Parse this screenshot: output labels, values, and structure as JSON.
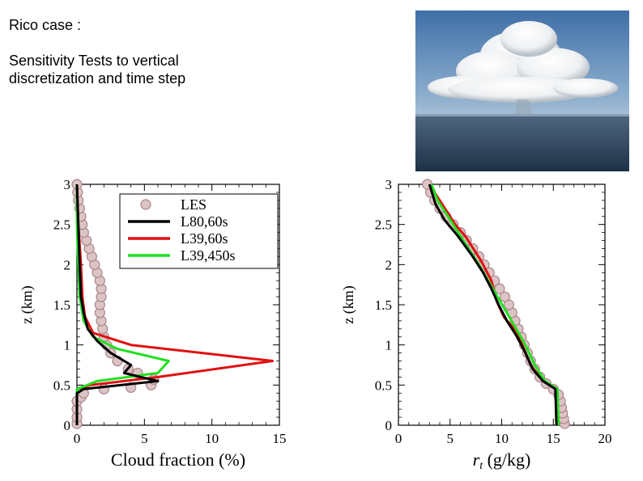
{
  "slide": {
    "heading": "Rico case :",
    "subtitle_line1": "Sensitivity Tests to vertical",
    "subtitle_line2": "discretization and time step",
    "photo_alt": "cumulus cloud over ocean"
  },
  "colors": {
    "LES": "#c9a3a6",
    "L80,60s": "#000000",
    "L39,60s": "#e01010",
    "L39,450s": "#20e020"
  },
  "chart_data": [
    {
      "type": "line",
      "xlabel": "Cloud fraction (%)",
      "ylabel": "z (km)",
      "xlim": [
        0,
        15
      ],
      "ylim": [
        0,
        3
      ],
      "xticks": [
        0,
        5,
        10,
        15
      ],
      "yticks": [
        0,
        0.5,
        1,
        1.5,
        2,
        2.5,
        3
      ],
      "xtick_labels": [
        "0",
        "5",
        "10",
        "15"
      ],
      "ytick_labels": [
        "0",
        "0.5",
        "1",
        "1.5",
        "2",
        "2.5",
        "3"
      ],
      "legend": [
        "LES",
        "L80,60s",
        "L39,60s",
        "L39,450s"
      ],
      "legend_position": "top-right",
      "series": [
        {
          "name": "LES",
          "style": "markers",
          "points": [
            [
              0,
              0.02
            ],
            [
              0,
              0.1
            ],
            [
              0,
              0.2
            ],
            [
              0,
              0.3
            ],
            [
              0.3,
              0.35
            ],
            [
              0.5,
              0.4
            ],
            [
              2,
              0.45
            ],
            [
              4,
              0.47
            ],
            [
              5.5,
              0.5
            ],
            [
              5.7,
              0.57
            ],
            [
              4.5,
              0.65
            ],
            [
              3.8,
              0.7
            ],
            [
              3,
              0.8
            ],
            [
              2.5,
              0.9
            ],
            [
              2.2,
              1.0
            ],
            [
              2,
              1.1
            ],
            [
              1.9,
              1.2
            ],
            [
              1.8,
              1.3
            ],
            [
              1.7,
              1.4
            ],
            [
              1.7,
              1.5
            ],
            [
              1.8,
              1.6
            ],
            [
              1.8,
              1.7
            ],
            [
              1.7,
              1.8
            ],
            [
              1.5,
              1.9
            ],
            [
              1.3,
              2.0
            ],
            [
              1.1,
              2.1
            ],
            [
              0.9,
              2.2
            ],
            [
              0.7,
              2.3
            ],
            [
              0.5,
              2.4
            ],
            [
              0.4,
              2.5
            ],
            [
              0.3,
              2.6
            ],
            [
              0.2,
              2.7
            ],
            [
              0.1,
              2.8
            ],
            [
              0.05,
              2.9
            ],
            [
              0,
              3.0
            ]
          ]
        },
        {
          "name": "L80,60s",
          "style": "line",
          "points": [
            [
              0,
              0
            ],
            [
              0,
              0.4
            ],
            [
              0.5,
              0.45
            ],
            [
              6,
              0.55
            ],
            [
              3.5,
              0.65
            ],
            [
              4,
              0.75
            ],
            [
              2.5,
              0.9
            ],
            [
              1.5,
              1.05
            ],
            [
              0.8,
              1.2
            ],
            [
              0.5,
              1.4
            ],
            [
              0.3,
              1.6
            ],
            [
              0.2,
              2.0
            ],
            [
              0.1,
              2.5
            ],
            [
              0,
              3.0
            ]
          ]
        },
        {
          "name": "L39,60s",
          "style": "line",
          "points": [
            [
              0,
              0
            ],
            [
              0,
              0.45
            ],
            [
              1,
              0.5
            ],
            [
              6,
              0.6
            ],
            [
              14.5,
              0.8
            ],
            [
              4,
              1.0
            ],
            [
              1.2,
              1.15
            ],
            [
              0.6,
              1.35
            ],
            [
              0.4,
              1.6
            ],
            [
              0.3,
              2.0
            ],
            [
              0.1,
              2.5
            ],
            [
              0,
              3.0
            ]
          ]
        },
        {
          "name": "L39,450s",
          "style": "line",
          "points": [
            [
              0,
              0
            ],
            [
              0,
              0.45
            ],
            [
              1.5,
              0.55
            ],
            [
              6,
              0.65
            ],
            [
              6.8,
              0.8
            ],
            [
              3,
              0.95
            ],
            [
              1.2,
              1.1
            ],
            [
              0.5,
              1.3
            ],
            [
              0.2,
              1.6
            ],
            [
              0.1,
              2.0
            ],
            [
              0,
              2.5
            ],
            [
              0,
              3.0
            ]
          ]
        }
      ]
    },
    {
      "type": "line",
      "xlabel": "r_t (g/kg)",
      "xlabel_prefix": "r",
      "xlabel_subscript": "t",
      "xlabel_suffix": " (g/kg)",
      "ylabel": "z (km)",
      "xlim": [
        0,
        20
      ],
      "ylim": [
        0,
        3
      ],
      "xticks": [
        0,
        5,
        10,
        15,
        20
      ],
      "yticks": [
        0,
        0.5,
        1,
        1.5,
        2,
        2.5,
        3
      ],
      "xtick_labels": [
        "0",
        "5",
        "10",
        "15",
        "20"
      ],
      "ytick_labels": [
        "0",
        "0.5",
        "1",
        "1.5",
        "2",
        "2.5",
        "3"
      ],
      "series": [
        {
          "name": "LES",
          "style": "markers",
          "points": [
            [
              16.1,
              0.02
            ],
            [
              16,
              0.08
            ],
            [
              15.9,
              0.15
            ],
            [
              15.8,
              0.22
            ],
            [
              15.7,
              0.3
            ],
            [
              15.5,
              0.38
            ],
            [
              15,
              0.45
            ],
            [
              14.3,
              0.52
            ],
            [
              13.7,
              0.6
            ],
            [
              13.2,
              0.7
            ],
            [
              12.8,
              0.8
            ],
            [
              12.5,
              0.9
            ],
            [
              12.2,
              1.0
            ],
            [
              11.9,
              1.1
            ],
            [
              11.6,
              1.2
            ],
            [
              11.3,
              1.3
            ],
            [
              11,
              1.4
            ],
            [
              10.7,
              1.5
            ],
            [
              10.3,
              1.6
            ],
            [
              9.8,
              1.7
            ],
            [
              9.3,
              1.8
            ],
            [
              8.8,
              1.9
            ],
            [
              8.3,
              2.0
            ],
            [
              7.8,
              2.1
            ],
            [
              7.2,
              2.2
            ],
            [
              6.6,
              2.3
            ],
            [
              6,
              2.4
            ],
            [
              5.3,
              2.5
            ],
            [
              4.6,
              2.6
            ],
            [
              4,
              2.7
            ],
            [
              3.5,
              2.8
            ],
            [
              3.1,
              2.9
            ],
            [
              2.8,
              3.0
            ]
          ]
        },
        {
          "name": "L80,60s",
          "style": "line",
          "points": [
            [
              15.3,
              0
            ],
            [
              15.2,
              0.45
            ],
            [
              14,
              0.55
            ],
            [
              13,
              0.7
            ],
            [
              12.3,
              0.9
            ],
            [
              11.5,
              1.1
            ],
            [
              10.5,
              1.3
            ],
            [
              9.7,
              1.5
            ],
            [
              9,
              1.7
            ],
            [
              8.2,
              1.9
            ],
            [
              7.2,
              2.1
            ],
            [
              5.8,
              2.35
            ],
            [
              4.5,
              2.55
            ],
            [
              3.6,
              2.75
            ],
            [
              3,
              3.0
            ]
          ]
        },
        {
          "name": "L39,60s",
          "style": "line",
          "points": [
            [
              15.4,
              0
            ],
            [
              15.3,
              0.45
            ],
            [
              14,
              0.55
            ],
            [
              12.8,
              0.75
            ],
            [
              12,
              1.0
            ],
            [
              11.2,
              1.2
            ],
            [
              10.2,
              1.35
            ],
            [
              9.5,
              1.55
            ],
            [
              9,
              1.8
            ],
            [
              8,
              2.05
            ],
            [
              6.5,
              2.35
            ],
            [
              5.5,
              2.5
            ],
            [
              4.5,
              2.7
            ],
            [
              3.5,
              2.9
            ],
            [
              3,
              3.0
            ]
          ]
        },
        {
          "name": "L39,450s",
          "style": "line",
          "points": [
            [
              15.5,
              0
            ],
            [
              15.4,
              0.45
            ],
            [
              14.2,
              0.55
            ],
            [
              13.2,
              0.75
            ],
            [
              12.3,
              1.0
            ],
            [
              11.4,
              1.2
            ],
            [
              10.5,
              1.4
            ],
            [
              9.6,
              1.6
            ],
            [
              8.7,
              1.8
            ],
            [
              7.8,
              2.0
            ],
            [
              6.8,
              2.2
            ],
            [
              5.8,
              2.4
            ],
            [
              4.8,
              2.6
            ],
            [
              3.8,
              2.8
            ],
            [
              3.2,
              3.0
            ]
          ]
        }
      ]
    }
  ]
}
